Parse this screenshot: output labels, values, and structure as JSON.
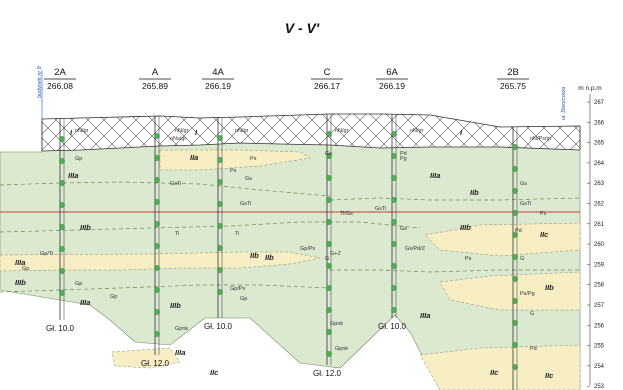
{
  "title": "V - V'",
  "left_label": "budynek nr 8",
  "right_label": "ul. Dworcowa",
  "scale": {
    "unit": "m n.p.m",
    "ticks": [
      "267",
      "266",
      "265",
      "264",
      "263",
      "262",
      "261",
      "260",
      "259",
      "258",
      "257",
      "256",
      "255",
      "254",
      "253"
    ]
  },
  "boreholes": [
    {
      "id": "2A",
      "elevation": "266.08",
      "depth": "Gł. 10.0"
    },
    {
      "id": "A",
      "elevation": "265.89",
      "depth": "Gł. 12.0"
    },
    {
      "id": "4A",
      "elevation": "266.19",
      "depth": "Gł. 10.0"
    },
    {
      "id": "C",
      "elevation": "266.17",
      "depth": "Gł. 12.0"
    },
    {
      "id": "6A",
      "elevation": "266.19",
      "depth": "Gł. 10.0"
    },
    {
      "id": "2B",
      "elevation": "265.75",
      "depth": ""
    }
  ],
  "layers": [
    "I",
    "IIIa",
    "IIIb",
    "IIa",
    "IIb",
    "IIc",
    "IIIa",
    "IIb",
    "IIIb",
    "IIIa",
    "IIIb",
    "IIIa",
    "IIIa",
    "IIb",
    "IIIb",
    "IIc",
    "IIb",
    "IIc",
    "IIc",
    "I",
    "IIIa",
    "I"
  ],
  "soil_codes": [
    "Gp",
    "Gp/Ti",
    "Gp",
    "Gp",
    "Gp",
    "Gp/Ps",
    "Gpnk",
    "Gp",
    "Gpnk",
    "Gp/Ps",
    "Gpnk",
    "Gs",
    "Gs",
    "Gs",
    "G",
    "Gs",
    "Ps",
    "Pd",
    "Pd",
    "Pd",
    "Ps/Pg",
    "Pg",
    "G",
    "G",
    "GsTi",
    "GsTi",
    "GsTi",
    "GsTi",
    "Gs/Pd/Z",
    "G+Z",
    "Ti",
    "Ti",
    "Ti/Gs",
    "nN/gr",
    "nN/gr",
    "nN/gr",
    "nN/gr",
    "nNs/gr",
    "nN/gr",
    "nN/Ps/gr",
    "Ps",
    "Ps",
    "Ps"
  ]
}
